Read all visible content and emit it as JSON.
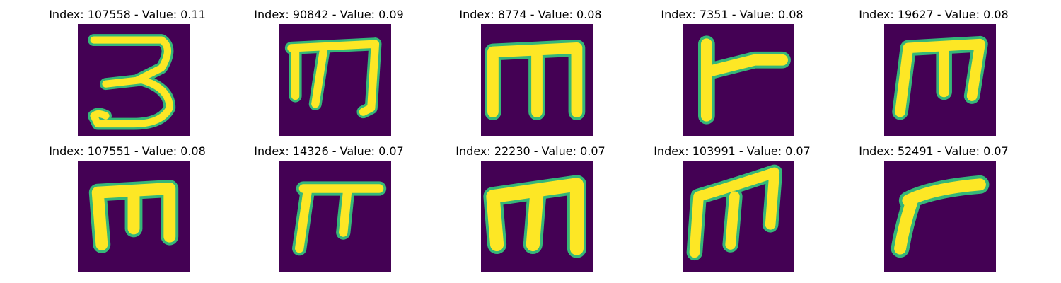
{
  "colors": {
    "background": "#440154",
    "stroke": "#fde725",
    "edge": "#35b779"
  },
  "panels": [
    {
      "title": "Index: 107558 - Value: 0.11",
      "glyph": "three-like"
    },
    {
      "title": "Index: 90842 - Value: 0.09",
      "glyph": "m-like"
    },
    {
      "title": "Index: 8774 - Value: 0.08",
      "glyph": "m-like"
    },
    {
      "title": "Index: 7351 - Value: 0.08",
      "glyph": "flag-like"
    },
    {
      "title": "Index: 19627 - Value: 0.08",
      "glyph": "m-like"
    },
    {
      "title": "Index: 107551 - Value: 0.08",
      "glyph": "m-like"
    },
    {
      "title": "Index: 14326 - Value: 0.07",
      "glyph": "pi-like"
    },
    {
      "title": "Index: 22230 - Value: 0.07",
      "glyph": "m-like"
    },
    {
      "title": "Index: 103991 - Value: 0.07",
      "glyph": "m-like"
    },
    {
      "title": "Index: 52491 - Value: 0.07",
      "glyph": "r-like"
    }
  ]
}
